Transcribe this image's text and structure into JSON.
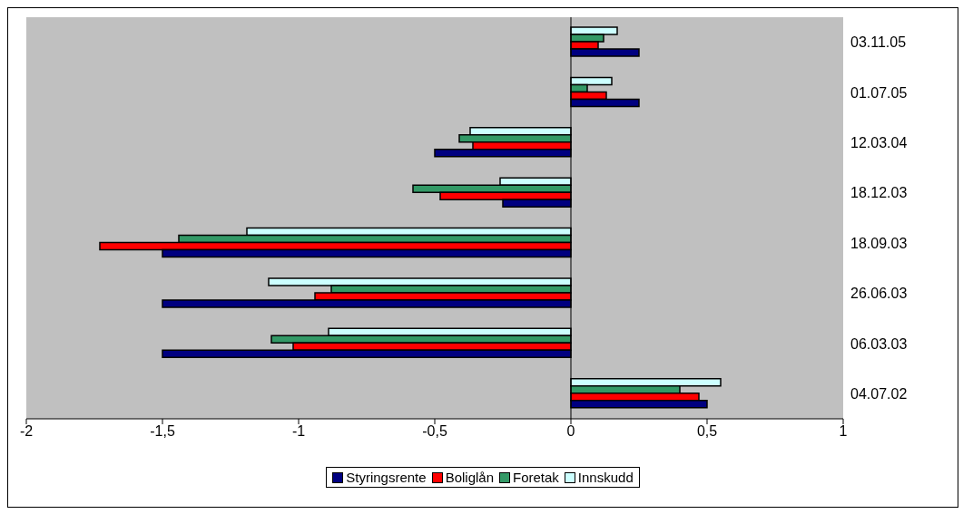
{
  "chart_data": {
    "type": "bar",
    "orientation": "horizontal",
    "categories": [
      "03.11.05",
      "01.07.05",
      "12.03.04",
      "18.12.03",
      "18.09.03",
      "26.06.03",
      "06.03.03",
      "04.07.02"
    ],
    "series": [
      {
        "name": "Styringsrente",
        "color": "#000080",
        "values": [
          0.25,
          0.25,
          -0.5,
          -0.25,
          -1.5,
          -1.5,
          -1.5,
          0.5
        ]
      },
      {
        "name": "Boliglån",
        "color": "#ff0000",
        "values": [
          0.1,
          0.13,
          -0.36,
          -0.48,
          -1.73,
          -0.94,
          -1.02,
          0.47
        ]
      },
      {
        "name": "Foretak",
        "color": "#339966",
        "values": [
          0.12,
          0.06,
          -0.41,
          -0.58,
          -1.44,
          -0.88,
          -1.1,
          0.4
        ]
      },
      {
        "name": "Innskudd",
        "color": "#ccffff",
        "values": [
          0.17,
          0.15,
          -0.37,
          -0.26,
          -1.19,
          -1.11,
          -0.89,
          0.55
        ]
      }
    ],
    "xlim": [
      -2,
      1
    ],
    "xticks": [
      -2,
      {
        "value": -1.5,
        "label": "-1,5"
      },
      -1,
      {
        "value": -0.5,
        "label": "-0,5"
      },
      0,
      {
        "value": 0.5,
        "label": "0,5"
      },
      1
    ],
    "legend": "bottom"
  }
}
